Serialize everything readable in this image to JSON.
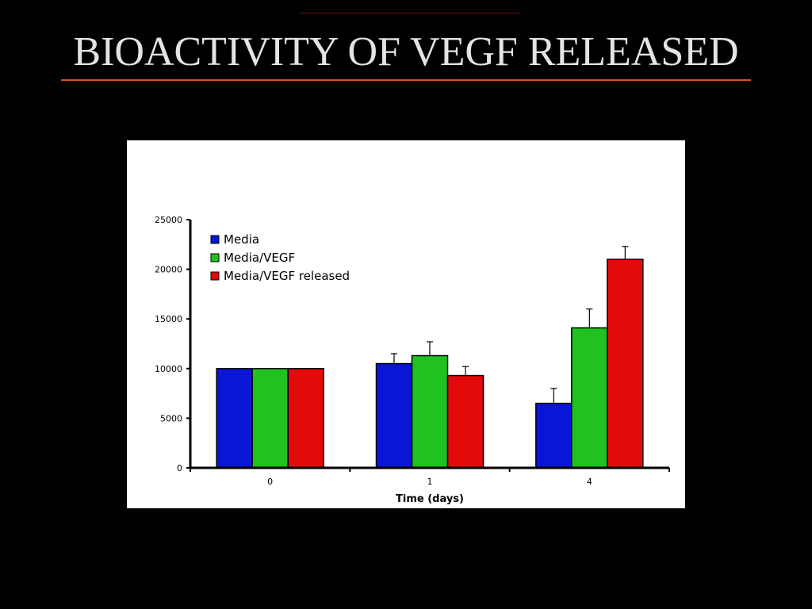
{
  "slide": {
    "title": "BIOACTIVITY OF VEGF RELEASED"
  },
  "colors": {
    "background": "#000000",
    "title_text": "#e4e4e4",
    "title_rule": "#cf5a1e",
    "panel": "#ffffff"
  },
  "chart_data": {
    "type": "bar",
    "categories": [
      "0",
      "1",
      "4"
    ],
    "xlabel": "Time (days)",
    "ylabel": "",
    "ylim": [
      0,
      25000
    ],
    "yticks": [
      0,
      5000,
      10000,
      15000,
      20000,
      25000
    ],
    "grid": false,
    "legend_position": "top-left",
    "error_bars": true,
    "series": [
      {
        "name": "Media",
        "color": "#0a16d6",
        "values": [
          10000,
          10500,
          6500
        ],
        "errors": [
          0,
          1000,
          1500
        ]
      },
      {
        "name": "Media/VEGF",
        "color": "#1fc21f",
        "values": [
          10000,
          11300,
          14100
        ],
        "errors": [
          0,
          1400,
          1900
        ]
      },
      {
        "name": "Media/VEGF released",
        "color": "#e20a0a",
        "values": [
          10000,
          9300,
          21000
        ],
        "errors": [
          0,
          900,
          1300
        ]
      }
    ]
  }
}
